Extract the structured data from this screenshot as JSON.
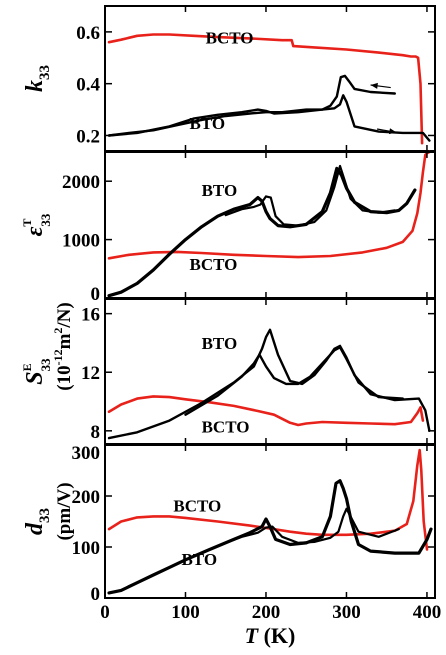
{
  "chart_data": [
    {
      "type": "line",
      "ylabel_main": "k",
      "ylabel_sub": "33",
      "xlim": [
        0,
        410
      ],
      "ylim": [
        0.14,
        0.7
      ],
      "yticks": [
        0.2,
        0.4,
        0.6
      ],
      "ytick_labels": [
        "0.2",
        "0.4",
        "0.6"
      ],
      "xticks": [
        0,
        100,
        200,
        300,
        400
      ],
      "annotations": [
        {
          "text": "BCTO",
          "x": 125,
          "y": 0.555
        },
        {
          "text": "BTO",
          "x": 105,
          "y": 0.225
        }
      ],
      "arrows": [
        {
          "x1": 355,
          "y1": 0.385,
          "x2": 330,
          "y2": 0.395
        },
        {
          "x1": 338,
          "y1": 0.225,
          "x2": 362,
          "y2": 0.212
        }
      ],
      "series": [
        {
          "label": "BCTO",
          "color": "#e8221b",
          "width": 2.6,
          "x": [
            5,
            20,
            40,
            60,
            80,
            110,
            140,
            180,
            220,
            232,
            234,
            260,
            300,
            340,
            370,
            380,
            386,
            389,
            392,
            394
          ],
          "y": [
            0.56,
            0.57,
            0.585,
            0.59,
            0.59,
            0.585,
            0.58,
            0.575,
            0.568,
            0.568,
            0.545,
            0.54,
            0.532,
            0.52,
            0.51,
            0.505,
            0.505,
            0.5,
            0.4,
            0.17
          ]
        },
        {
          "label": "BTO",
          "color": "#000000",
          "width": 2.4,
          "x": [
            5,
            30,
            60,
            90,
            120,
            150,
            180,
            200,
            220,
            250,
            270,
            280,
            288,
            293,
            298,
            303,
            310,
            330,
            360
          ],
          "y": [
            0.2,
            0.21,
            0.22,
            0.24,
            0.26,
            0.275,
            0.285,
            0.29,
            0.29,
            0.3,
            0.3,
            0.315,
            0.35,
            0.425,
            0.43,
            0.41,
            0.38,
            0.368,
            0.362
          ]
        },
        {
          "label": "BTO",
          "color": "#000000",
          "width": 2.4,
          "x": [
            5,
            40,
            80,
            110,
            140,
            170,
            190,
            200,
            210,
            240,
            270,
            285,
            292,
            296,
            300,
            310,
            340,
            370,
            395,
            403
          ],
          "y": [
            0.2,
            0.21,
            0.235,
            0.265,
            0.28,
            0.29,
            0.3,
            0.295,
            0.285,
            0.29,
            0.3,
            0.305,
            0.32,
            0.355,
            0.33,
            0.235,
            0.215,
            0.21,
            0.21,
            0.18
          ]
        }
      ]
    },
    {
      "type": "line",
      "ylabel_main": "ε",
      "ylabel_sub": "33",
      "ylabel_sup": "T",
      "xlim": [
        0,
        410
      ],
      "ylim": [
        0,
        2500
      ],
      "yticks": [
        0,
        1000,
        2000
      ],
      "ytick_labels": [
        "0",
        "1000",
        "2000"
      ],
      "xticks": [
        0,
        100,
        200,
        300,
        400
      ],
      "annotations": [
        {
          "text": "BTO",
          "x": 120,
          "y": 1750
        },
        {
          "text": "BCTO",
          "x": 105,
          "y": 480
        }
      ],
      "series": [
        {
          "label": "BCTO",
          "color": "#e8221b",
          "width": 2.6,
          "x": [
            5,
            30,
            60,
            90,
            120,
            160,
            200,
            240,
            280,
            320,
            350,
            370,
            382,
            388,
            392,
            395,
            398,
            400,
            403
          ],
          "y": [
            680,
            740,
            780,
            790,
            770,
            740,
            720,
            700,
            720,
            780,
            860,
            960,
            1150,
            1450,
            1800,
            2150,
            2450,
            2480,
            2500
          ]
        },
        {
          "label": "BTO",
          "color": "#000000",
          "width": 3.2,
          "x": [
            5,
            20,
            40,
            60,
            80,
            100,
            120,
            140,
            160,
            180,
            190,
            195,
            200,
            205,
            215,
            230,
            250,
            270,
            280,
            288,
            294,
            300,
            310,
            330,
            350,
            365,
            375,
            385
          ],
          "y": [
            40,
            100,
            250,
            480,
            750,
            1000,
            1220,
            1400,
            1520,
            1600,
            1720,
            1660,
            1480,
            1360,
            1240,
            1220,
            1260,
            1480,
            1800,
            2220,
            2100,
            1880,
            1640,
            1480,
            1460,
            1500,
            1620,
            1850
          ]
        },
        {
          "label": "BTO",
          "color": "#000000",
          "width": 2.2,
          "x": [
            150,
            170,
            185,
            193,
            200,
            206,
            212,
            222,
            240,
            260,
            275,
            285,
            292,
            297,
            305,
            320,
            340,
            360
          ],
          "y": [
            1420,
            1520,
            1560,
            1600,
            1740,
            1720,
            1400,
            1260,
            1240,
            1300,
            1500,
            1900,
            2260,
            2050,
            1700,
            1500,
            1460,
            1500
          ]
        }
      ]
    },
    {
      "type": "line",
      "ylabel_main": "S",
      "ylabel_sub": "33",
      "ylabel_sup": "E",
      "ylabel_unit": "(10-12m2/N)",
      "xlim": [
        0,
        410
      ],
      "ylim": [
        7.1,
        17.0
      ],
      "yticks": [
        8,
        12,
        16
      ],
      "ytick_labels": [
        "8",
        "12",
        "16"
      ],
      "xticks": [
        0,
        100,
        200,
        300,
        400
      ],
      "annotations": [
        {
          "text": "BTO",
          "x": 120,
          "y": 13.6
        },
        {
          "text": "BCTO",
          "x": 120,
          "y": 7.9
        }
      ],
      "series": [
        {
          "label": "BCTO",
          "color": "#e8221b",
          "width": 2.6,
          "x": [
            5,
            20,
            40,
            60,
            80,
            100,
            130,
            160,
            190,
            210,
            230,
            240,
            250,
            270,
            300,
            330,
            360,
            380,
            388,
            392,
            395
          ],
          "y": [
            9.3,
            9.8,
            10.2,
            10.35,
            10.3,
            10.15,
            9.95,
            9.7,
            9.35,
            9.1,
            8.55,
            8.4,
            8.5,
            8.6,
            8.55,
            8.5,
            8.45,
            8.6,
            9.2,
            9.6,
            8.7
          ]
        },
        {
          "label": "BTO",
          "color": "#000000",
          "width": 2.4,
          "x": [
            5,
            40,
            80,
            120,
            160,
            185,
            195,
            200,
            205,
            215,
            230,
            245,
            260,
            275,
            285,
            292,
            300,
            310,
            330,
            360,
            390,
            398,
            403
          ],
          "y": [
            7.5,
            7.9,
            8.7,
            9.9,
            11.3,
            12.4,
            13.6,
            14.4,
            14.9,
            13.2,
            11.4,
            11.2,
            11.8,
            12.8,
            13.6,
            13.8,
            13.0,
            11.8,
            10.5,
            10.1,
            10.2,
            9.4,
            8.0
          ]
        },
        {
          "label": "BTO",
          "color": "#000000",
          "width": 2.4,
          "x": [
            100,
            140,
            170,
            185,
            192,
            200,
            210,
            225,
            240,
            255,
            270,
            285,
            292,
            300,
            315,
            340,
            370
          ],
          "y": [
            9.1,
            10.4,
            11.7,
            12.6,
            13.2,
            12.4,
            11.6,
            11.2,
            11.2,
            11.7,
            12.6,
            13.5,
            13.7,
            12.9,
            11.3,
            10.3,
            10.2
          ]
        }
      ]
    },
    {
      "type": "line",
      "ylabel_main": "d",
      "ylabel_sub": "33",
      "ylabel_unit": "(pm/V)",
      "xlabel": "T (K)",
      "xlim": [
        0,
        410
      ],
      "ylim": [
        0,
        300
      ],
      "yticks": [
        0,
        100,
        200,
        300
      ],
      "ytick_labels": [
        "0",
        "100",
        "200",
        "300"
      ],
      "xticks": [
        0,
        100,
        200,
        300,
        400
      ],
      "xtick_labels": [
        "0",
        "100",
        "200",
        "300",
        "400"
      ],
      "annotations": [
        {
          "text": "BCTO",
          "x": 85,
          "y": 170
        },
        {
          "text": "BTO",
          "x": 95,
          "y": 65
        }
      ],
      "series": [
        {
          "label": "BCTO",
          "color": "#e8221b",
          "width": 2.6,
          "x": [
            5,
            20,
            40,
            60,
            80,
            100,
            140,
            180,
            210,
            230,
            250,
            270,
            300,
            330,
            360,
            375,
            383,
            388,
            391,
            393,
            396,
            400
          ],
          "y": [
            135,
            150,
            158,
            160,
            160,
            157,
            150,
            142,
            135,
            130,
            126,
            124,
            124,
            126,
            132,
            145,
            190,
            260,
            290,
            250,
            150,
            95
          ]
        },
        {
          "label": "BTO",
          "color": "#000000",
          "width": 3.2,
          "x": [
            5,
            20,
            40,
            60,
            80,
            100,
            130,
            160,
            180,
            195,
            200,
            205,
            212,
            230,
            250,
            270,
            280,
            287,
            292,
            296,
            300,
            306,
            315,
            330,
            360,
            390,
            400,
            405
          ],
          "y": [
            10,
            15,
            30,
            45,
            60,
            75,
            95,
            115,
            128,
            140,
            155,
            140,
            115,
            105,
            108,
            120,
            160,
            225,
            230,
            215,
            195,
            150,
            105,
            92,
            88,
            88,
            115,
            135
          ]
        },
        {
          "label": "BTO",
          "color": "#000000",
          "width": 2.2,
          "x": [
            150,
            170,
            190,
            200,
            208,
            220,
            240,
            260,
            280,
            290,
            296,
            300,
            305,
            315,
            340,
            365
          ],
          "y": [
            108,
            120,
            128,
            138,
            140,
            120,
            108,
            110,
            118,
            130,
            160,
            175,
            160,
            130,
            120,
            135
          ]
        }
      ]
    }
  ]
}
